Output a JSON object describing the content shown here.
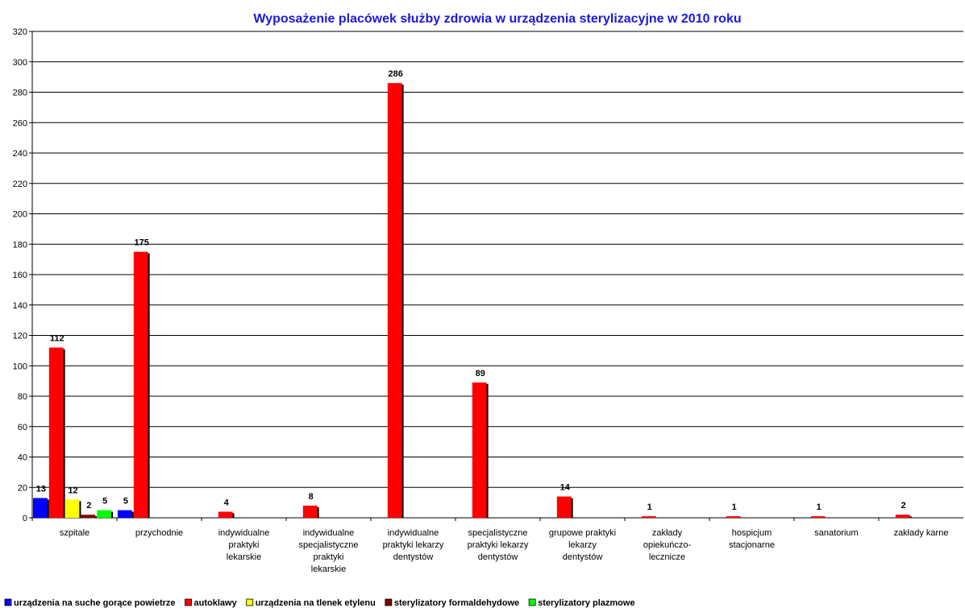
{
  "chart_data": {
    "type": "bar",
    "title": "Wyposażenie placówek służby zdrowia w urządzenia sterylizacyjne w 2010 roku",
    "categories": [
      "szpitale",
      "przychodnie",
      "indywidualne\npraktyki\nlekarskie",
      "indywidualne\nspecjalistyczne\npraktyki\nlekarskie",
      "indywidualne\npraktyki lekarzy\ndentystów",
      "specjalistyczne\npraktyki lekarzy\ndentystów",
      "grupowe praktyki\nlekarzy\ndentystów",
      "zakłady\nopiekuńczo-\nlecznicze",
      "hospicjum\nstacjonarne",
      "sanatorium",
      "zakłady karne"
    ],
    "series": [
      {
        "name": "urządzenia na suche gorące powietrze",
        "color": "#0000ff",
        "values": [
          13,
          5,
          null,
          null,
          null,
          null,
          null,
          null,
          null,
          null,
          null
        ]
      },
      {
        "name": "autoklawy",
        "color": "#ff0000",
        "values": [
          112,
          175,
          4,
          8,
          286,
          89,
          14,
          1,
          1,
          1,
          2
        ]
      },
      {
        "name": "urządzenia na tlenek etylenu",
        "color": "#ffff00",
        "values": [
          12,
          null,
          null,
          null,
          null,
          null,
          null,
          null,
          null,
          null,
          null
        ]
      },
      {
        "name": "sterylizatory formaldehydowe",
        "color": "#800000",
        "values": [
          2,
          null,
          null,
          null,
          null,
          null,
          null,
          null,
          null,
          null,
          null
        ]
      },
      {
        "name": "sterylizatory plazmowe",
        "color": "#00ff00",
        "values": [
          5,
          null,
          null,
          null,
          null,
          null,
          null,
          null,
          null,
          null,
          null
        ]
      }
    ],
    "ylim": [
      0,
      320
    ],
    "yticks": [
      0,
      20,
      40,
      60,
      80,
      100,
      120,
      140,
      160,
      180,
      200,
      220,
      240,
      260,
      280,
      300,
      320
    ],
    "grid": true,
    "legend": "bottom"
  }
}
